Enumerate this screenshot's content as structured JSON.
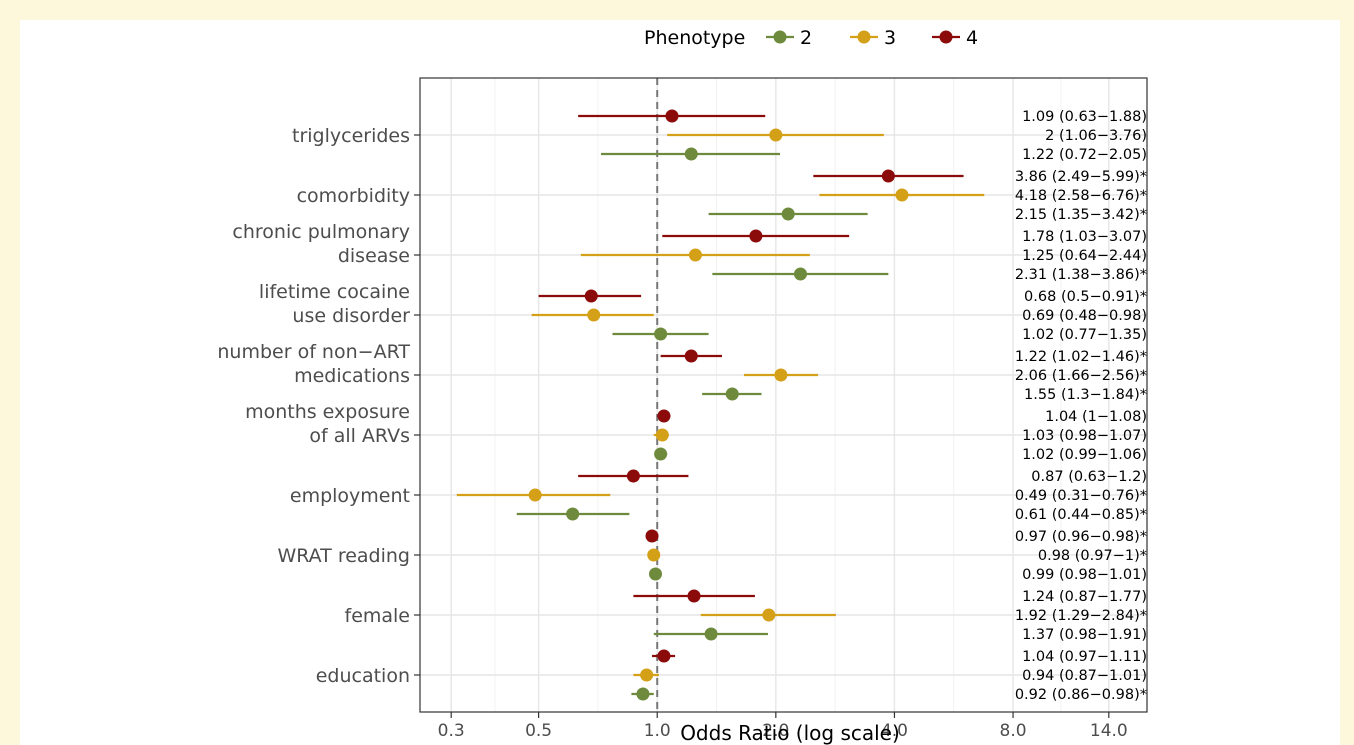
{
  "colors": {
    "2": "#6e8b3d",
    "3": "#d4a017",
    "4": "#8b0a0a",
    "background": "#fdf8dc"
  },
  "chart_data": {
    "type": "forest",
    "xlabel": "Odds Ratio (log scale)",
    "x_scale": "log",
    "xlim": [
      0.25,
      17.5
    ],
    "x_ticks": [
      0.3,
      0.5,
      1.0,
      2.0,
      4.0,
      8.0,
      14.0
    ],
    "x_tick_labels": [
      "0.3",
      "0.5",
      "1.0",
      "2.0",
      "4.0",
      "8.0",
      "14.0"
    ],
    "reference_line": 1.0,
    "grid": true,
    "legend": {
      "title": "Phenotype",
      "position": "top",
      "entries": [
        "2",
        "3",
        "4"
      ]
    },
    "categories": [
      "triglycerides",
      "comorbidity",
      "chronic pulmonary disease",
      "lifetime cocaine use disorder",
      "number of non−ART medications",
      "months exposure of all ARVs",
      "employment",
      "WRAT reading",
      "female",
      "education"
    ],
    "category_lines": [
      [
        "triglycerides"
      ],
      [
        "comorbidity"
      ],
      [
        "chronic pulmonary",
        "disease"
      ],
      [
        "lifetime cocaine",
        "use disorder"
      ],
      [
        "number of non−ART",
        "medications"
      ],
      [
        "months exposure",
        "of all ARVs"
      ],
      [
        "employment"
      ],
      [
        "WRAT reading"
      ],
      [
        "female"
      ],
      [
        "education"
      ]
    ],
    "series": [
      {
        "name": "4",
        "or": [
          1.09,
          3.86,
          1.78,
          0.68,
          1.22,
          1.04,
          0.87,
          0.97,
          1.24,
          1.04
        ],
        "lower": [
          0.63,
          2.49,
          1.03,
          0.5,
          1.02,
          1.0,
          0.63,
          0.96,
          0.87,
          0.97
        ],
        "upper": [
          1.88,
          5.99,
          3.07,
          0.91,
          1.46,
          1.08,
          1.2,
          0.98,
          1.77,
          1.11
        ],
        "labels": [
          "1.09 (0.63−1.88)",
          "3.86 (2.49−5.99)*",
          "1.78 (1.03−3.07)",
          "0.68 (0.5−0.91)*",
          "1.22 (1.02−1.46)*",
          "1.04 (1−1.08)",
          "0.87 (0.63−1.2)",
          "0.97 (0.96−0.98)*",
          "1.24 (0.87−1.77)",
          "1.04 (0.97−1.11)"
        ]
      },
      {
        "name": "3",
        "or": [
          2,
          4.18,
          1.25,
          0.69,
          2.06,
          1.03,
          0.49,
          0.98,
          1.92,
          0.94
        ],
        "lower": [
          1.06,
          2.58,
          0.64,
          0.48,
          1.66,
          0.98,
          0.31,
          0.97,
          1.29,
          0.87
        ],
        "upper": [
          3.76,
          6.76,
          2.44,
          0.98,
          2.56,
          1.07,
          0.76,
          1.0,
          2.84,
          1.01
        ],
        "labels": [
          "2 (1.06−3.76)",
          "4.18 (2.58−6.76)*",
          "1.25 (0.64−2.44)",
          "0.69 (0.48−0.98)",
          "2.06 (1.66−2.56)*",
          "1.03 (0.98−1.07)",
          "0.49 (0.31−0.76)*",
          "0.98 (0.97−1)*",
          "1.92 (1.29−2.84)*",
          "0.94 (0.87−1.01)"
        ]
      },
      {
        "name": "2",
        "or": [
          1.22,
          2.15,
          2.31,
          1.02,
          1.55,
          1.02,
          0.61,
          0.99,
          1.37,
          0.92
        ],
        "lower": [
          0.72,
          1.35,
          1.38,
          0.77,
          1.3,
          0.99,
          0.44,
          0.98,
          0.98,
          0.86
        ],
        "upper": [
          2.05,
          3.42,
          3.86,
          1.35,
          1.84,
          1.06,
          0.85,
          1.01,
          1.91,
          0.98
        ],
        "labels": [
          "1.22 (0.72−2.05)",
          "2.15 (1.35−3.42)*",
          "2.31 (1.38−3.86)*",
          "1.02 (0.77−1.35)",
          "1.55 (1.3−1.84)*",
          "1.02 (0.99−1.06)",
          "0.61 (0.44−0.85)*",
          "0.99 (0.98−1.01)",
          "1.37 (0.98−1.91)",
          "0.92 (0.86−0.98)*"
        ]
      }
    ]
  }
}
